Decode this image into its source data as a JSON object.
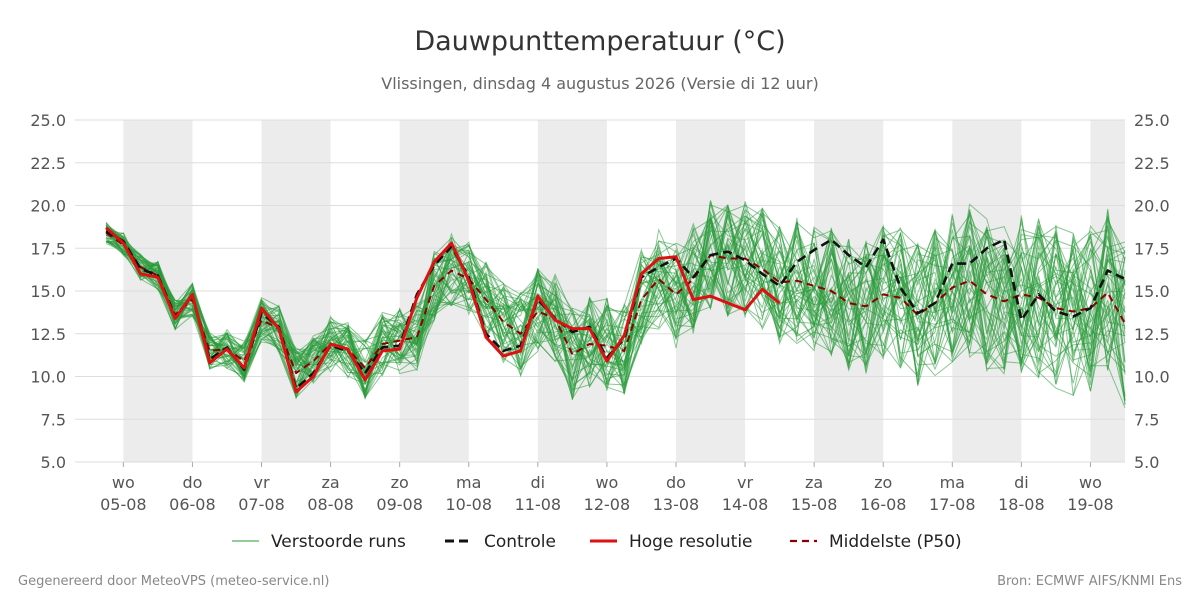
{
  "chart_data": {
    "type": "line",
    "title": "Dauwpunttemperatuur (°C)",
    "subtitle": "Vlissingen, dinsdag  4 augustus 2026 (Versie di 12 uur)",
    "ylim": [
      5.0,
      25.0
    ],
    "yticks": [
      "5.0",
      "7.5",
      "10.0",
      "12.5",
      "15.0",
      "17.5",
      "20.0",
      "22.5",
      "25.0"
    ],
    "x_range_days": [
      -0.7,
      14.5
    ],
    "xticks": [
      {
        "day": "wo",
        "date": "05-08"
      },
      {
        "day": "do",
        "date": "06-08"
      },
      {
        "day": "vr",
        "date": "07-08"
      },
      {
        "day": "za",
        "date": "08-08"
      },
      {
        "day": "zo",
        "date": "09-08"
      },
      {
        "day": "ma",
        "date": "10-08"
      },
      {
        "day": "di",
        "date": "11-08"
      },
      {
        "day": "wo",
        "date": "12-08"
      },
      {
        "day": "do",
        "date": "13-08"
      },
      {
        "day": "vr",
        "date": "14-08"
      },
      {
        "day": "za",
        "date": "15-08"
      },
      {
        "day": "zo",
        "date": "16-08"
      },
      {
        "day": "ma",
        "date": "17-08"
      },
      {
        "day": "di",
        "date": "18-08"
      },
      {
        "day": "wo",
        "date": "19-08"
      }
    ],
    "grid": true,
    "shaded_days": [
      0,
      2,
      4,
      6,
      8,
      10,
      12,
      14
    ],
    "colors": {
      "ensemble": "#2a9a3a",
      "controle": "#111111",
      "hoge_resolutie": "#dd1111",
      "p50": "#8b0000",
      "shade": "#ececec",
      "grid": "#dddddd"
    },
    "legend": [
      {
        "key": "ensemble",
        "label": "Verstoorde runs"
      },
      {
        "key": "controle",
        "label": "Controle"
      },
      {
        "key": "hoge_resolutie",
        "label": "Hoge resolutie"
      },
      {
        "key": "p50",
        "label": "Middelste (P50)"
      }
    ],
    "legend_position": "bottom",
    "ensemble_member_count": 50,
    "series": [
      {
        "name": "Hoge resolutie",
        "style": "hoge_resolutie",
        "x": [
          -0.25,
          0,
          0.25,
          0.5,
          0.75,
          1,
          1.25,
          1.5,
          1.75,
          2,
          2.25,
          2.5,
          2.75,
          3,
          3.25,
          3.5,
          3.75,
          4,
          4.25,
          4.5,
          4.75,
          5,
          5.25,
          5.5,
          5.75,
          6,
          6.25,
          6.5,
          6.75,
          7,
          7.25,
          7.5,
          7.75,
          8,
          8.25,
          8.5,
          8.75,
          9,
          9.25,
          9.5,
          9.75,
          10
        ],
        "values": [
          18.7,
          17.8,
          16.0,
          15.8,
          13.4,
          14.8,
          10.8,
          11.6,
          10.5,
          14.0,
          12.8,
          9.1,
          10.0,
          11.9,
          11.6,
          9.8,
          11.5,
          11.6,
          14.6,
          16.7,
          17.8,
          15.6,
          12.3,
          11.2,
          11.5,
          14.7,
          13.3,
          12.8,
          12.8,
          10.9,
          12.4,
          16.0,
          16.9,
          17.0,
          14.5,
          14.7,
          14.3,
          13.9,
          15.1,
          14.3,
          null,
          null
        ]
      },
      {
        "name": "Controle",
        "style": "controle",
        "x": [
          -0.25,
          0,
          0.25,
          0.5,
          0.75,
          1,
          1.25,
          1.5,
          1.75,
          2,
          2.25,
          2.5,
          2.75,
          3,
          3.25,
          3.5,
          3.75,
          4,
          4.25,
          4.5,
          4.75,
          5,
          5.25,
          5.5,
          5.75,
          6,
          6.25,
          6.5,
          6.75,
          7,
          7.25,
          7.5,
          7.75,
          8,
          8.25,
          8.5,
          8.75,
          9,
          9.25,
          9.5,
          9.75,
          10,
          10.25,
          10.5,
          10.75,
          11,
          11.25,
          11.5,
          11.75,
          12,
          12.25,
          12.5,
          12.75,
          13,
          13.25,
          13.5,
          13.75,
          14,
          14.25,
          14.5
        ],
        "values": [
          18.5,
          17.9,
          16.3,
          15.9,
          13.5,
          14.7,
          11.0,
          11.7,
          10.4,
          13.7,
          12.9,
          9.3,
          10.2,
          11.8,
          11.5,
          10.2,
          11.7,
          11.8,
          14.8,
          16.5,
          17.6,
          15.8,
          12.5,
          11.5,
          11.8,
          14.5,
          13.4,
          12.6,
          12.9,
          11.1,
          12.2,
          15.8,
          16.4,
          16.9,
          15.8,
          17.1,
          17.3,
          16.8,
          16.0,
          15.3,
          16.7,
          17.4,
          18.0,
          17.1,
          16.4,
          18.0,
          15.2,
          13.7,
          14.3,
          16.6,
          16.6,
          17.5,
          18.0,
          13.3,
          14.8,
          13.8,
          13.5,
          14.0,
          16.2,
          15.7
        ]
      },
      {
        "name": "Middelste (P50)",
        "style": "p50",
        "x": [
          -0.25,
          0,
          0.25,
          0.5,
          0.75,
          1,
          1.25,
          1.5,
          1.75,
          2,
          2.25,
          2.5,
          2.75,
          3,
          3.25,
          3.5,
          3.75,
          4,
          4.25,
          4.5,
          4.75,
          5,
          5.25,
          5.5,
          5.75,
          6,
          6.25,
          6.5,
          6.75,
          7,
          7.25,
          7.5,
          7.75,
          8,
          8.25,
          8.5,
          8.75,
          9,
          9.25,
          9.5,
          9.75,
          10,
          10.25,
          10.5,
          10.75,
          11,
          11.25,
          11.5,
          11.75,
          12,
          12.25,
          12.5,
          12.75,
          13,
          13.25,
          13.5,
          13.75,
          14,
          14.25,
          14.5
        ],
        "values": [
          18.4,
          17.7,
          16.4,
          15.9,
          13.6,
          14.5,
          11.5,
          11.6,
          10.9,
          13.3,
          12.8,
          10.2,
          10.9,
          11.9,
          11.6,
          10.5,
          11.9,
          12.1,
          12.3,
          15.3,
          16.2,
          15.7,
          14.5,
          13.2,
          12.5,
          13.8,
          13.4,
          11.3,
          11.9,
          11.8,
          11.5,
          14.5,
          15.7,
          14.8,
          15.7,
          17.1,
          16.9,
          16.9,
          16.3,
          15.5,
          15.6,
          15.3,
          15.0,
          14.3,
          14.1,
          14.8,
          14.6,
          13.6,
          14.3,
          15.2,
          15.6,
          14.8,
          14.4,
          14.8,
          14.6,
          14.0,
          13.8,
          14.0,
          14.9,
          13.1
        ]
      }
    ]
  },
  "footer": {
    "left": "Gegenereerd door MeteoVPS (meteo-service.nl)",
    "right": "Bron: ECMWF AIFS/KNMI Ens"
  }
}
